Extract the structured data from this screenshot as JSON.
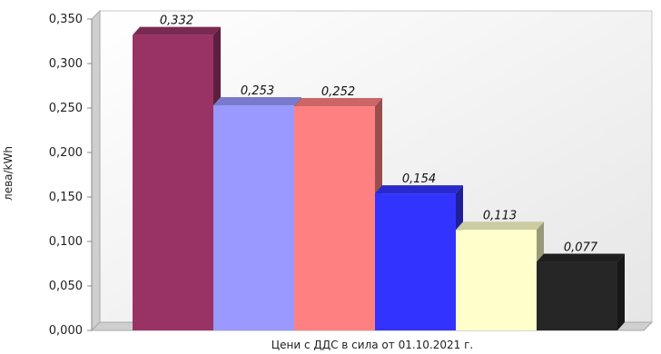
{
  "chart_data": {
    "type": "bar",
    "title": "",
    "xlabel": "Цени с ДДС в сила от 01.10.2021 г.",
    "ylabel": "лева/kWh",
    "ylim": [
      0,
      0.35
    ],
    "yticks": [
      "0,000",
      "0,050",
      "0,100",
      "0,150",
      "0,200",
      "0,250",
      "0,300",
      "0,350"
    ],
    "grid": false,
    "style": "3d",
    "values": [
      0.332,
      0.253,
      0.252,
      0.154,
      0.113,
      0.077
    ],
    "value_labels": [
      "0,332",
      "0,253",
      "0,252",
      "0,154",
      "0,113",
      "0,077"
    ],
    "colors": [
      "#993366",
      "#9999ff",
      "#ff8080",
      "#3333ff",
      "#ffffcc",
      "#262626"
    ]
  }
}
